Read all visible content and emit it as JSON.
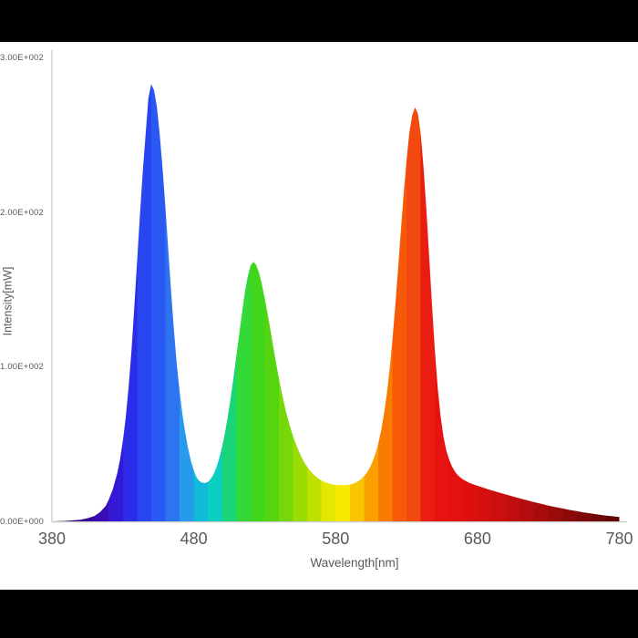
{
  "colors": {
    "letterbox": "#000000",
    "background": "#ffffff",
    "axis_line": "#c9c9c9",
    "label_text": "#595959"
  },
  "chart_data": {
    "type": "area",
    "title": "",
    "xlabel": "Wavelength[nm]",
    "ylabel": "Intensity[mW]",
    "xlim": [
      380,
      780
    ],
    "ylim": [
      0,
      300
    ],
    "grid": false,
    "legend": "none",
    "x_ticks": [
      {
        "value": 380,
        "label": "380"
      },
      {
        "value": 480,
        "label": "480"
      },
      {
        "value": 580,
        "label": "580"
      },
      {
        "value": 680,
        "label": "680"
      },
      {
        "value": 780,
        "label": "780"
      }
    ],
    "y_ticks": [
      {
        "value": 0,
        "label": "0.00E+000"
      },
      {
        "value": 100,
        "label": "1.00E+002"
      },
      {
        "value": 200,
        "label": "2.00E+002"
      },
      {
        "value": 300,
        "label": "3.00E+002"
      }
    ],
    "peaks": [
      {
        "nm": 450,
        "intensity": 283,
        "region": "blue"
      },
      {
        "nm": 522,
        "intensity": 168,
        "region": "green"
      },
      {
        "nm": 636,
        "intensity": 268,
        "region": "red"
      }
    ],
    "valleys": [
      {
        "nm": 486,
        "intensity": 25
      },
      {
        "nm": 586,
        "intensity": 23.5
      }
    ],
    "series": [
      {
        "name": "spectrum",
        "x": [
          380,
          390,
          400,
          405,
          410,
          414,
          418,
          420,
          423,
          426,
          428,
          430,
          432,
          434,
          436,
          438,
          440,
          442,
          444,
          446,
          448,
          450,
          452,
          454,
          456,
          458,
          460,
          462,
          464,
          466,
          468,
          470,
          472,
          474,
          476,
          478,
          480,
          482,
          484,
          486,
          488,
          490,
          492,
          494,
          496,
          498,
          500,
          502,
          504,
          506,
          508,
          510,
          512,
          514,
          516,
          518,
          520,
          522,
          524,
          526,
          528,
          530,
          532,
          534,
          536,
          538,
          540,
          542,
          544,
          546,
          548,
          550,
          552,
          554,
          556,
          558,
          560,
          562,
          564,
          566,
          568,
          570,
          572,
          574,
          576,
          578,
          580,
          582,
          584,
          586,
          588,
          590,
          592,
          594,
          596,
          598,
          600,
          602,
          604,
          606,
          608,
          610,
          612,
          614,
          616,
          618,
          620,
          622,
          624,
          626,
          628,
          630,
          632,
          634,
          636,
          638,
          640,
          642,
          644,
          646,
          648,
          650,
          652,
          654,
          656,
          658,
          660,
          662,
          664,
          666,
          668,
          670,
          672,
          674,
          676,
          678,
          680,
          684,
          688,
          692,
          696,
          700,
          705,
          710,
          715,
          720,
          725,
          730,
          735,
          740,
          745,
          750,
          755,
          760,
          765,
          770,
          775,
          780
        ],
        "y": [
          0,
          0.3,
          1,
          2,
          3.5,
          6,
          10,
          14,
          21,
          31,
          40,
          52,
          67,
          86,
          110,
          138,
          168,
          198,
          226,
          250,
          274,
          283,
          279,
          268,
          250,
          228,
          203,
          176,
          149,
          124,
          102,
          84,
          69,
          57,
          47,
          39,
          33,
          28.5,
          26,
          25,
          24.8,
          25.5,
          27.5,
          30.5,
          35,
          41,
          48.5,
          57.5,
          68,
          80,
          93,
          107,
          121,
          135,
          148,
          158.5,
          165.5,
          168,
          166,
          161,
          153.5,
          144.5,
          134.5,
          124,
          113,
          102.5,
          92.5,
          83.5,
          75,
          67.5,
          61,
          55,
          50,
          45.5,
          41.5,
          38,
          35.2,
          32.8,
          30.8,
          29,
          27.6,
          26.5,
          25.6,
          24.9,
          24.3,
          23.9,
          23.6,
          23.5,
          23.4,
          23.4,
          23.5,
          23.8,
          24.3,
          25,
          26,
          27.4,
          29.2,
          31.5,
          34.5,
          38.5,
          43.5,
          50,
          58.5,
          69,
          82,
          98,
          117,
          139,
          163,
          188,
          212,
          234,
          252,
          263,
          268,
          264,
          251,
          229,
          201,
          170,
          139,
          110,
          86,
          68,
          55,
          46,
          40,
          35.5,
          32.3,
          30,
          28.3,
          27,
          26,
          25.1,
          24.3,
          23.6,
          23,
          21.8,
          20.6,
          19.5,
          18.4,
          17.4,
          16.1,
          14.8,
          13.6,
          12.4,
          11.3,
          10.2,
          9.2,
          8.3,
          7.4,
          6.6,
          5.8,
          5.1,
          4.4,
          3.8,
          3.3,
          2.8
        ]
      }
    ],
    "color_bands": [
      [
        380,
        "#2b0668"
      ],
      [
        390,
        "#32077e"
      ],
      [
        400,
        "#380896"
      ],
      [
        410,
        "#3a0cb4"
      ],
      [
        420,
        "#3318d6"
      ],
      [
        430,
        "#2c2ce8"
      ],
      [
        440,
        "#2845f0"
      ],
      [
        450,
        "#2a58f2"
      ],
      [
        460,
        "#2e74f0"
      ],
      [
        470,
        "#279aec"
      ],
      [
        480,
        "#12bada"
      ],
      [
        490,
        "#0bcfc0"
      ],
      [
        500,
        "#19d478"
      ],
      [
        510,
        "#34d938"
      ],
      [
        520,
        "#41d51c"
      ],
      [
        530,
        "#57d411"
      ],
      [
        540,
        "#76d80b"
      ],
      [
        550,
        "#9adb04"
      ],
      [
        560,
        "#bfdf00"
      ],
      [
        570,
        "#e2e800"
      ],
      [
        580,
        "#f6e800"
      ],
      [
        590,
        "#f9c400"
      ],
      [
        600,
        "#f9a000"
      ],
      [
        610,
        "#f97c00"
      ],
      [
        620,
        "#f65908"
      ],
      [
        630,
        "#f24a0e"
      ],
      [
        640,
        "#eb1c11"
      ],
      [
        650,
        "#e71312"
      ],
      [
        660,
        "#e31211"
      ],
      [
        670,
        "#dd1010"
      ],
      [
        680,
        "#d40f0f"
      ],
      [
        690,
        "#cb0e0e"
      ],
      [
        700,
        "#c00d0d"
      ],
      [
        710,
        "#b40c0c"
      ],
      [
        720,
        "#a70b0b"
      ],
      [
        730,
        "#990a0a"
      ],
      [
        740,
        "#8b0909"
      ],
      [
        750,
        "#7d0808"
      ],
      [
        760,
        "#700707"
      ],
      [
        770,
        "#640606"
      ]
    ]
  }
}
